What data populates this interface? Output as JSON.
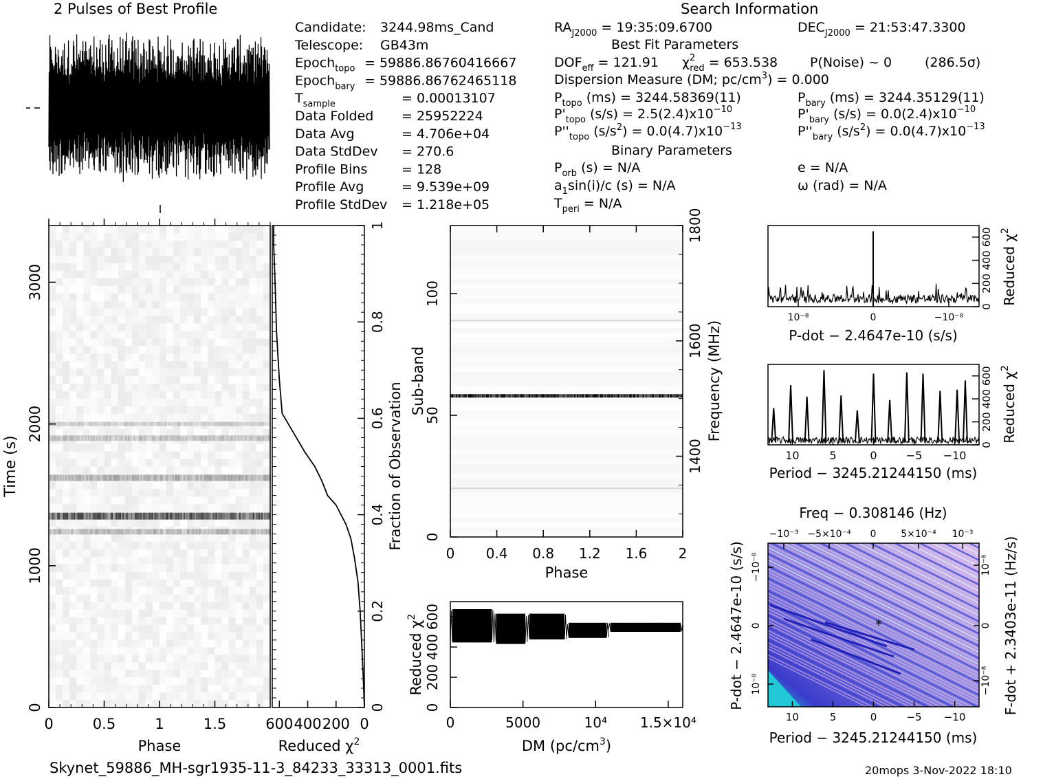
{
  "header": {
    "profile_title": "2 Pulses of Best Profile",
    "search_title": "Search Information",
    "best_fit_title": "Best Fit Parameters",
    "binary_title": "Binary Parameters"
  },
  "left_info": [
    {
      "label": "Candidate:",
      "sub": "",
      "value": "3244.98ms_Cand"
    },
    {
      "label": "Telescope:",
      "sub": "",
      "value": "GB43m"
    },
    {
      "label": "Epoch",
      "sub": "topo",
      "value": "= 59886.86760416667"
    },
    {
      "label": "Epoch",
      "sub": "bary",
      "value": "= 59886.86762465118"
    },
    {
      "label": "T",
      "sub": "sample",
      "value": "=   0.00013107"
    },
    {
      "label": "Data Folded",
      "sub": "",
      "value": "=   25952224"
    },
    {
      "label": "Data Avg",
      "sub": "",
      "value": "=   4.706e+04"
    },
    {
      "label": "Data StdDev",
      "sub": "",
      "value": "=   270.6"
    },
    {
      "label": "Profile Bins",
      "sub": "",
      "value": "=   128"
    },
    {
      "label": "Profile Avg",
      "sub": "",
      "value": "=   9.539e+09"
    },
    {
      "label": "Profile StdDev",
      "sub": "",
      "value": "=   1.218e+05"
    }
  ],
  "search_info": {
    "ra": "RA",
    "ra_sub": "J2000",
    "ra_value": " = 19:35:09.6700",
    "dec": "DEC",
    "dec_sub": "J2000",
    "dec_value": " = 21:53:47.3300",
    "dof": "DOF",
    "dof_sub": "eff",
    "dof_value": " = 121.91",
    "chi": "χ",
    "chi_sup": "2",
    "chi_sub": "red",
    "chi_value": " = 653.538",
    "pnoise": "P(Noise) ~ 0",
    "sigma": "(286.5σ)",
    "dm_line": "Dispersion Measure (DM; pc/cm",
    "dm_sup": "3",
    "dm_value": ") = 0.000",
    "ptopo": "P",
    "ptopo_sub": "topo",
    "ptopo_value": " (ms) =  3244.58369(11)",
    "pbary": "P",
    "pbary_sub": "bary",
    "pbary_value": " (ms) =  3244.35129(11)",
    "pdtopo": "P'",
    "pdtopo_sub": "topo",
    "pdtopo_value": " (s/s) =  2.5(2.4)x10",
    "pdtopo_exp": "−10",
    "pdbary": "P'",
    "pdbary_sub": "bary",
    "pdbary_value": " (s/s) = 0.0(2.4)x10",
    "pdbary_exp": "−10",
    "pddtopo": "P''",
    "pddtopo_sub": "topo",
    "pddtopo_value": " (s/s",
    "pddtopo_sup": "2",
    "pddtopo_value2": ") = 0.0(4.7)x10",
    "pddtopo_exp": "−13",
    "pddbary": "P''",
    "pddbary_sub": "bary",
    "pddbary_value": " (s/s",
    "pddbary_sup": "2",
    "pddbary_value2": ") = 0.0(4.7)x10",
    "pddbary_exp": "−13",
    "porb": "P",
    "porb_sub": "orb",
    "porb_value": " (s) = N/A",
    "ecc": "e = N/A",
    "asini": "a",
    "asini_sub": "1",
    "asini_value": "sin(i)/c (s) = N/A",
    "omega": "ω (rad) = N/A",
    "tperi": "T",
    "tperi_sub": "peri",
    "tperi_value": " = N/A"
  },
  "footer": {
    "filename": "Skynet_59886_MH-sgr1935-11-3_84233_33313_0001.fits",
    "stamp": "20mops  3-Nov-2022 18:10"
  },
  "colors": {
    "ink": "#000000",
    "greyscale_max": "#000000",
    "pp_low": "#3b3bcc",
    "pp_mid": "#e2b6ea",
    "pp_high": "#22c8d8"
  },
  "chart_data": [
    {
      "type": "line",
      "id": "pulse-profile",
      "title": "2 Pulses of Best Profile",
      "note": "two pulse periods of the best profile; high-variance noise-like trace",
      "phase_range": [
        0,
        2
      ]
    },
    {
      "type": "heatmap",
      "id": "time-phase",
      "xlabel": "Phase",
      "ylabel": "Time (s)",
      "xlim": [
        0,
        2
      ],
      "ylim": [
        0,
        3400
      ],
      "xticks": [
        "0",
        "0.5",
        "1",
        "1.5"
      ],
      "yticks": [
        "0",
        "1000",
        "2000",
        "3000"
      ],
      "colormap": "greyscale",
      "bright_bands_time_s": [
        1350,
        1620,
        1900,
        1240
      ]
    },
    {
      "type": "line",
      "id": "time-chi2",
      "xlabel": "Reduced χ2",
      "ylabel": "Fraction of Observation",
      "xlim": [
        650,
        0
      ],
      "ylim": [
        0,
        1
      ],
      "xticks": [
        "600",
        "400",
        "200",
        "0"
      ],
      "yticks": [
        "0",
        "0.2",
        "0.4",
        "0.6",
        "0.8",
        "1"
      ],
      "x": [
        0,
        8,
        20,
        30,
        45,
        70,
        95,
        130,
        200,
        260,
        300,
        350,
        420,
        480,
        540,
        580,
        600,
        620,
        630,
        640,
        640
      ],
      "y": [
        0,
        0.06,
        0.14,
        0.2,
        0.26,
        0.31,
        0.35,
        0.38,
        0.42,
        0.44,
        0.47,
        0.5,
        0.53,
        0.56,
        0.59,
        0.61,
        0.68,
        0.78,
        0.88,
        0.96,
        1
      ]
    },
    {
      "type": "heatmap",
      "id": "subband-phase",
      "xlabel": "Phase",
      "ylabel": "Sub-band",
      "y2label": "Frequency (MHz)",
      "xlim": [
        0,
        2
      ],
      "ylim": [
        0,
        128
      ],
      "y2lim": [
        1260,
        1800
      ],
      "xticks": [
        "0",
        "0.4",
        "0.8",
        "1.2",
        "1.6",
        "2"
      ],
      "yticks": [
        "0",
        "50",
        "100"
      ],
      "y2ticks": [
        "1400",
        "1600",
        "1800"
      ],
      "bright_subband": 58,
      "faint_subbands": [
        20,
        89
      ]
    },
    {
      "type": "line",
      "id": "dm-chi2",
      "xlabel": "DM (pc/cm3)",
      "ylabel": "Reduced χ2",
      "xlim": [
        0,
        16000
      ],
      "ylim": [
        0,
        700
      ],
      "xticks": [
        "0",
        "5000",
        "10⁴",
        "1.5×10⁴"
      ],
      "yticks": [
        "0",
        "200",
        "400",
        "600"
      ],
      "segments": [
        {
          "x_range": [
            0,
            3000
          ],
          "low": 430,
          "high": 650
        },
        {
          "x_range": [
            3000,
            5300
          ],
          "low": 420,
          "high": 620
        },
        {
          "x_range": [
            5300,
            8000
          ],
          "low": 450,
          "high": 620
        },
        {
          "x_range": [
            8000,
            10900
          ],
          "low": 460,
          "high": 560
        },
        {
          "x_range": [
            10900,
            16000
          ],
          "low": 500,
          "high": 560
        }
      ]
    },
    {
      "type": "line",
      "id": "pdot-chi2",
      "xlabel": "P-dot − 2.4647e-10 (s/s)",
      "ylabel": "Reduced χ2",
      "ylim": [
        0,
        700
      ],
      "yticks": [
        "0",
        "200",
        "400",
        "600"
      ],
      "xticks": [
        "10⁻⁸",
        "0",
        "−10⁻⁸"
      ],
      "peak_at": 0,
      "peak_value": 650,
      "noise_floor": [
        30,
        200
      ]
    },
    {
      "type": "line",
      "id": "period-chi2",
      "xlabel": "Period − 3245.21244150 (ms)",
      "ylabel": "Reduced χ2",
      "xlim": [
        13,
        -13
      ],
      "ylim": [
        0,
        700
      ],
      "xticks": [
        "10",
        "5",
        "0",
        "−5",
        "−10"
      ],
      "yticks": [
        "0",
        "200",
        "400",
        "600"
      ],
      "peaks": [
        {
          "x": 12.3,
          "y": 320
        },
        {
          "x": 10.2,
          "y": 520
        },
        {
          "x": 8.2,
          "y": 420
        },
        {
          "x": 6.1,
          "y": 650
        },
        {
          "x": 4.0,
          "y": 430
        },
        {
          "x": 2.0,
          "y": 300
        },
        {
          "x": 0.0,
          "y": 620
        },
        {
          "x": -2.0,
          "y": 390
        },
        {
          "x": -4.1,
          "y": 630
        },
        {
          "x": -6.1,
          "y": 620
        },
        {
          "x": -8.2,
          "y": 470
        },
        {
          "x": -10.3,
          "y": 480
        },
        {
          "x": -11.3,
          "y": 560
        }
      ]
    },
    {
      "type": "heatmap",
      "id": "p-pdot",
      "title": "Freq − 0.308146 (Hz)",
      "xlabel": "Period − 3245.21244150 (ms)",
      "ylabel": "P-dot − 2.4647e-10 (s/s)",
      "y2label": "F-dot + 2.3403e-11 (Hz/s)",
      "xticks": [
        "10",
        "5",
        "0",
        "−5",
        "−10"
      ],
      "x2ticks": [
        "−10⁻³",
        "−5×10⁻⁴",
        "0",
        "5×10⁻⁴",
        "10⁻³"
      ],
      "yticks": [
        "10⁻⁸",
        "0",
        "−10⁻⁸"
      ],
      "y2ticks": [
        "−10⁻⁸",
        "0",
        "10⁻⁸"
      ],
      "colormap": "blue-pink",
      "best_marker": {
        "x": 0,
        "y": 0
      }
    }
  ]
}
